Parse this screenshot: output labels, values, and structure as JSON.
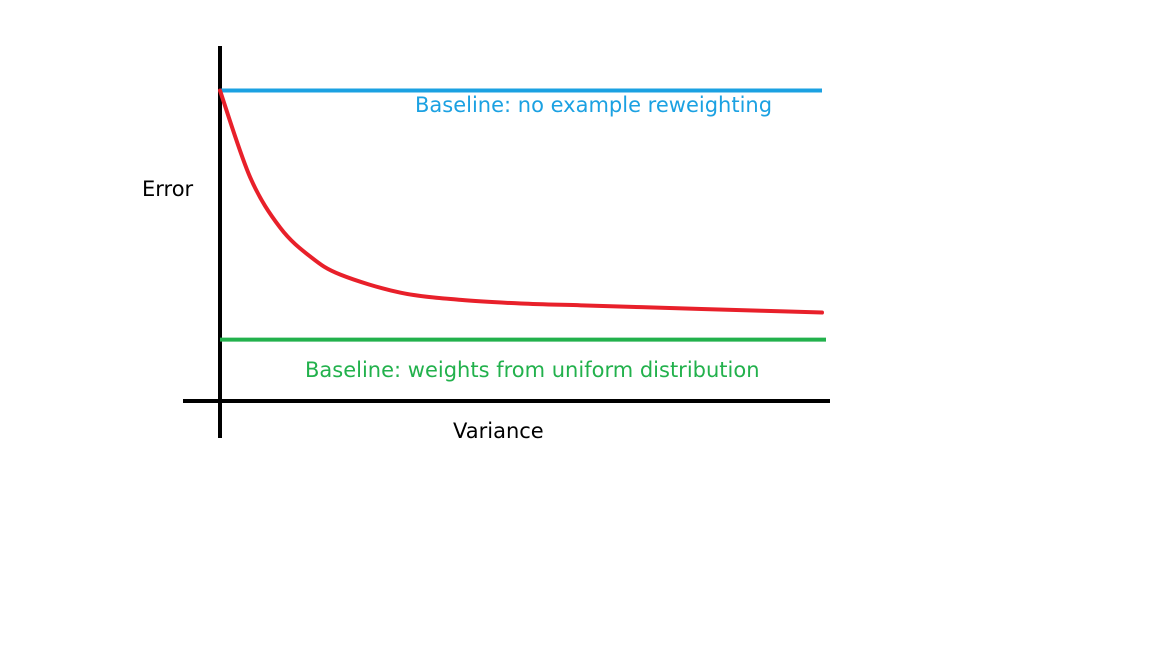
{
  "chart_data": {
    "type": "line",
    "xlabel": "Variance",
    "ylabel": "Error",
    "annotations": [
      {
        "text": "Baseline: no example reweighting",
        "series": "baseline_no_reweighting"
      },
      {
        "text": "Baseline: weights from uniform distribution",
        "series": "baseline_uniform"
      }
    ],
    "series": [
      {
        "key": "baseline_no_reweighting",
        "style": "horizontal",
        "color": "#1ba1e2",
        "y_level": 0.86
      },
      {
        "key": "method_curve",
        "style": "decay",
        "color": "#e8202a",
        "x": [
          0.0,
          0.05,
          0.1,
          0.15,
          0.2,
          0.3,
          0.4,
          0.5,
          0.6,
          0.7,
          0.8,
          0.9,
          1.0
        ],
        "y": [
          0.86,
          0.62,
          0.48,
          0.4,
          0.35,
          0.3,
          0.28,
          0.27,
          0.265,
          0.26,
          0.255,
          0.25,
          0.245
        ]
      },
      {
        "key": "baseline_uniform",
        "style": "horizontal",
        "color": "#22b14c",
        "y_level": 0.17
      }
    ],
    "xlim": [
      0,
      1
    ],
    "ylim": [
      0,
      1
    ],
    "grid": false,
    "ticks": false,
    "axis_color": "#000000",
    "text_color": "#000000"
  }
}
